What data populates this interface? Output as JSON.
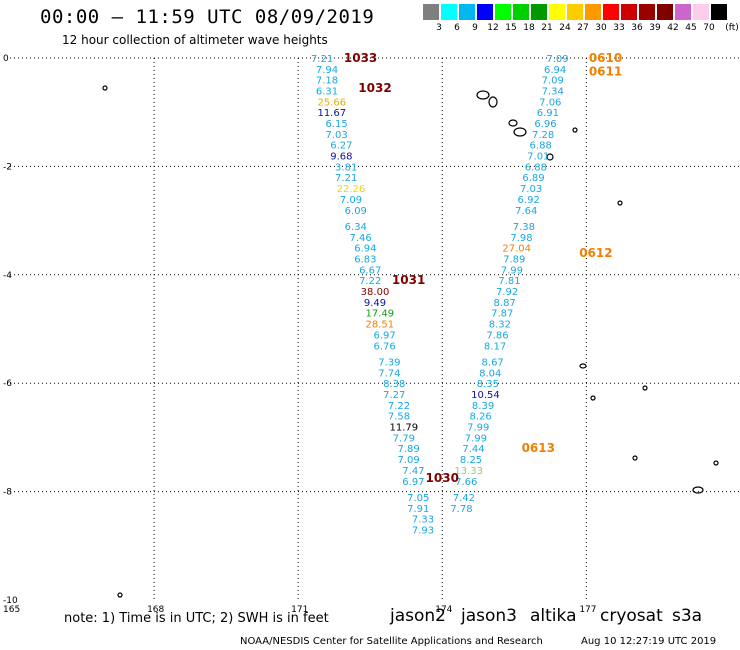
{
  "title": "00:00 – 11:59 UTC 08/09/2019",
  "subtitle": "12 hour collection of altimeter wave heights",
  "legend": {
    "unit": "(ft)",
    "bins": [
      {
        "label": "3",
        "color": "#7f7f7f"
      },
      {
        "label": "6",
        "color": "#00ffff"
      },
      {
        "label": "9",
        "color": "#00b7ef"
      },
      {
        "label": "12",
        "color": "#0000ff"
      },
      {
        "label": "15",
        "color": "#00ff00"
      },
      {
        "label": "18",
        "color": "#00d000"
      },
      {
        "label": "21",
        "color": "#009900"
      },
      {
        "label": "24",
        "color": "#ffff00"
      },
      {
        "label": "27",
        "color": "#ffcc00"
      },
      {
        "label": "30",
        "color": "#ff9900"
      },
      {
        "label": "33",
        "color": "#ff0000"
      },
      {
        "label": "36",
        "color": "#cc0000"
      },
      {
        "label": "39",
        "color": "#990000"
      },
      {
        "label": "42",
        "color": "#800000"
      },
      {
        "label": "45",
        "color": "#cc66cc"
      },
      {
        "label": "70",
        "color": "#ffccee"
      },
      {
        "label": "",
        "color": "#000000"
      }
    ]
  },
  "axes": {
    "lat_labels": [
      "0",
      "-2",
      "-4",
      "-6",
      "-8",
      "-10"
    ],
    "lon_labels": [
      "165",
      "168",
      "171",
      "174",
      "177"
    ]
  },
  "colors": {
    "light_blue": "#1aa7e0",
    "dark_blue": "#1010a0",
    "gold": "#e0b000",
    "orange": "#f08000",
    "dark_red": "#800000",
    "yellow": "#f0d800",
    "green": "#10a010",
    "light_green": "#90d070",
    "black": "#000000"
  },
  "tracks": [
    {
      "name": "west",
      "points": [
        {
          "lon": 171.5,
          "lat": 0.0,
          "value": "7.21",
          "c": "light_blue"
        },
        {
          "lon": 171.6,
          "lat": -0.2,
          "value": "7.94",
          "c": "light_blue"
        },
        {
          "lon": 171.6,
          "lat": -0.4,
          "value": "7.18",
          "c": "light_blue"
        },
        {
          "lon": 171.6,
          "lat": -0.6,
          "value": "6.31",
          "c": "light_blue"
        },
        {
          "lon": 171.7,
          "lat": -0.8,
          "value": "25.66",
          "c": "gold"
        },
        {
          "lon": 171.7,
          "lat": -1.0,
          "value": "11.67",
          "c": "dark_blue"
        },
        {
          "lon": 171.8,
          "lat": -1.2,
          "value": "6.15",
          "c": "light_blue"
        },
        {
          "lon": 171.8,
          "lat": -1.4,
          "value": "7.03",
          "c": "light_blue"
        },
        {
          "lon": 171.9,
          "lat": -1.6,
          "value": "6.27",
          "c": "light_blue"
        },
        {
          "lon": 171.9,
          "lat": -1.8,
          "value": "9.68",
          "c": "dark_blue"
        },
        {
          "lon": 172.0,
          "lat": -2.0,
          "value": "3.81",
          "c": "light_blue"
        },
        {
          "lon": 172.0,
          "lat": -2.2,
          "value": "7.21",
          "c": "light_blue"
        },
        {
          "lon": 172.1,
          "lat": -2.4,
          "value": "22.26",
          "c": "yellow"
        },
        {
          "lon": 172.1,
          "lat": -2.6,
          "value": "7.09",
          "c": "light_blue"
        },
        {
          "lon": 172.2,
          "lat": -2.8,
          "value": "6.09",
          "c": "light_blue"
        },
        {
          "lon": 172.2,
          "lat": -3.1,
          "value": "6.34",
          "c": "light_blue"
        },
        {
          "lon": 172.3,
          "lat": -3.3,
          "value": "7.46",
          "c": "light_blue"
        },
        {
          "lon": 172.4,
          "lat": -3.5,
          "value": "6.94",
          "c": "light_blue"
        },
        {
          "lon": 172.4,
          "lat": -3.7,
          "value": "6.83",
          "c": "light_blue"
        },
        {
          "lon": 172.5,
          "lat": -3.9,
          "value": "6.67",
          "c": "light_blue"
        },
        {
          "lon": 172.5,
          "lat": -4.1,
          "value": "7.22",
          "c": "light_blue"
        },
        {
          "lon": 172.6,
          "lat": -4.3,
          "value": "38.00",
          "c": "dark_red"
        },
        {
          "lon": 172.6,
          "lat": -4.5,
          "value": "9.49",
          "c": "dark_blue"
        },
        {
          "lon": 172.7,
          "lat": -4.7,
          "value": "17.49",
          "c": "green"
        },
        {
          "lon": 172.7,
          "lat": -4.9,
          "value": "28.51",
          "c": "orange"
        },
        {
          "lon": 172.8,
          "lat": -5.1,
          "value": "6.97",
          "c": "light_blue"
        },
        {
          "lon": 172.8,
          "lat": -5.3,
          "value": "6.76",
          "c": "light_blue"
        },
        {
          "lon": 172.9,
          "lat": -5.6,
          "value": "7.39",
          "c": "light_blue"
        },
        {
          "lon": 172.9,
          "lat": -5.8,
          "value": "7.74",
          "c": "light_blue"
        },
        {
          "lon": 173.0,
          "lat": -6.0,
          "value": "8.38",
          "c": "light_blue"
        },
        {
          "lon": 173.0,
          "lat": -6.2,
          "value": "7.27",
          "c": "light_blue"
        },
        {
          "lon": 173.1,
          "lat": -6.4,
          "value": "7.22",
          "c": "light_blue"
        },
        {
          "lon": 173.1,
          "lat": -6.6,
          "value": "7.58",
          "c": "light_blue"
        },
        {
          "lon": 173.2,
          "lat": -6.8,
          "value": "11.79",
          "c": "black"
        },
        {
          "lon": 173.2,
          "lat": -7.0,
          "value": "7.79",
          "c": "light_blue"
        },
        {
          "lon": 173.3,
          "lat": -7.2,
          "value": "7.89",
          "c": "light_blue"
        },
        {
          "lon": 173.3,
          "lat": -7.4,
          "value": "7.09",
          "c": "light_blue"
        },
        {
          "lon": 173.4,
          "lat": -7.6,
          "value": "7.47",
          "c": "light_blue"
        },
        {
          "lon": 173.4,
          "lat": -7.8,
          "value": "6.97",
          "c": "light_blue"
        },
        {
          "lon": 173.5,
          "lat": -8.1,
          "value": "7.05",
          "c": "light_blue"
        },
        {
          "lon": 173.5,
          "lat": -8.3,
          "value": "7.91",
          "c": "light_blue"
        },
        {
          "lon": 173.6,
          "lat": -8.5,
          "value": "7.33",
          "c": "light_blue"
        },
        {
          "lon": 173.6,
          "lat": -8.7,
          "value": "7.93",
          "c": "light_blue"
        }
      ]
    },
    {
      "name": "east",
      "points": [
        {
          "lon": 176.4,
          "lat": 0.0,
          "value": "7.09",
          "c": "light_blue"
        },
        {
          "lon": 176.35,
          "lat": -0.2,
          "value": "6.94",
          "c": "light_blue"
        },
        {
          "lon": 176.3,
          "lat": -0.4,
          "value": "7.09",
          "c": "light_blue"
        },
        {
          "lon": 176.3,
          "lat": -0.6,
          "value": "7.34",
          "c": "light_blue"
        },
        {
          "lon": 176.25,
          "lat": -0.8,
          "value": "7.06",
          "c": "light_blue"
        },
        {
          "lon": 176.2,
          "lat": -1.0,
          "value": "6.91",
          "c": "light_blue"
        },
        {
          "lon": 176.15,
          "lat": -1.2,
          "value": "6.96",
          "c": "light_blue"
        },
        {
          "lon": 176.1,
          "lat": -1.4,
          "value": "7.28",
          "c": "light_blue"
        },
        {
          "lon": 176.05,
          "lat": -1.6,
          "value": "6.88",
          "c": "light_blue"
        },
        {
          "lon": 176.0,
          "lat": -1.8,
          "value": "7.01",
          "c": "light_blue"
        },
        {
          "lon": 175.95,
          "lat": -2.0,
          "value": "6.88",
          "c": "light_blue"
        },
        {
          "lon": 175.9,
          "lat": -2.2,
          "value": "6.89",
          "c": "light_blue"
        },
        {
          "lon": 175.85,
          "lat": -2.4,
          "value": "7.03",
          "c": "light_blue"
        },
        {
          "lon": 175.8,
          "lat": -2.6,
          "value": "6.92",
          "c": "light_blue"
        },
        {
          "lon": 175.75,
          "lat": -2.8,
          "value": "7.64",
          "c": "light_blue"
        },
        {
          "lon": 175.7,
          "lat": -3.1,
          "value": "7.38",
          "c": "light_blue"
        },
        {
          "lon": 175.65,
          "lat": -3.3,
          "value": "7.98",
          "c": "light_blue"
        },
        {
          "lon": 175.55,
          "lat": -3.5,
          "value": "27.04",
          "c": "orange"
        },
        {
          "lon": 175.5,
          "lat": -3.7,
          "value": "7.89",
          "c": "light_blue"
        },
        {
          "lon": 175.45,
          "lat": -3.9,
          "value": "7.99",
          "c": "light_blue"
        },
        {
          "lon": 175.4,
          "lat": -4.1,
          "value": "7.81",
          "c": "light_blue"
        },
        {
          "lon": 175.35,
          "lat": -4.3,
          "value": "7.92",
          "c": "light_blue"
        },
        {
          "lon": 175.3,
          "lat": -4.5,
          "value": "8.87",
          "c": "light_blue"
        },
        {
          "lon": 175.25,
          "lat": -4.7,
          "value": "7.87",
          "c": "light_blue"
        },
        {
          "lon": 175.2,
          "lat": -4.9,
          "value": "8.32",
          "c": "light_blue"
        },
        {
          "lon": 175.15,
          "lat": -5.1,
          "value": "7.86",
          "c": "light_blue"
        },
        {
          "lon": 175.1,
          "lat": -5.3,
          "value": "8.17",
          "c": "light_blue"
        },
        {
          "lon": 175.05,
          "lat": -5.6,
          "value": "8.67",
          "c": "light_blue"
        },
        {
          "lon": 175.0,
          "lat": -5.8,
          "value": "8.04",
          "c": "light_blue"
        },
        {
          "lon": 174.95,
          "lat": -6.0,
          "value": "8.35",
          "c": "light_blue"
        },
        {
          "lon": 174.9,
          "lat": -6.2,
          "value": "10.54",
          "c": "dark_blue"
        },
        {
          "lon": 174.85,
          "lat": -6.4,
          "value": "8.39",
          "c": "light_blue"
        },
        {
          "lon": 174.8,
          "lat": -6.6,
          "value": "8.26",
          "c": "light_blue"
        },
        {
          "lon": 174.75,
          "lat": -6.8,
          "value": "7.99",
          "c": "light_blue"
        },
        {
          "lon": 174.7,
          "lat": -7.0,
          "value": "7.99",
          "c": "light_blue"
        },
        {
          "lon": 174.65,
          "lat": -7.2,
          "value": "7.44",
          "c": "light_blue"
        },
        {
          "lon": 174.6,
          "lat": -7.4,
          "value": "8.25",
          "c": "light_blue"
        },
        {
          "lon": 174.55,
          "lat": -7.6,
          "value": "13.33",
          "c": "light_green"
        },
        {
          "lon": 174.5,
          "lat": -7.8,
          "value": "7.66",
          "c": "light_blue"
        },
        {
          "lon": 174.45,
          "lat": -8.1,
          "value": "7.42",
          "c": "light_blue"
        },
        {
          "lon": 174.4,
          "lat": -8.3,
          "value": "7.78",
          "c": "light_blue"
        }
      ]
    }
  ],
  "time_labels": [
    {
      "text": "1033",
      "lon": 172.3,
      "lat": 0.0,
      "c": "dark_red"
    },
    {
      "text": "1032",
      "lon": 172.6,
      "lat": -0.55,
      "c": "dark_red"
    },
    {
      "text": "1031",
      "lon": 173.3,
      "lat": -4.1,
      "c": "dark_red"
    },
    {
      "text": "1030",
      "lon": 174.0,
      "lat": -7.75,
      "c": "dark_red"
    },
    {
      "text": "0610",
      "lon": 177.4,
      "lat": 0.0,
      "c": "orange"
    },
    {
      "text": "0611",
      "lon": 177.4,
      "lat": -0.25,
      "c": "orange"
    },
    {
      "text": "0612",
      "lon": 177.2,
      "lat": -3.6,
      "c": "orange"
    },
    {
      "text": "0613",
      "lon": 176.0,
      "lat": -7.2,
      "c": "orange"
    }
  ],
  "note": "note: 1) Time is in UTC; 2) SWH is in feet",
  "satellites": [
    {
      "name": "jason2",
      "color": "#1010c0"
    },
    {
      "name": "jason3",
      "color": "#10a010"
    },
    {
      "name": "altika",
      "color": "#f08000"
    },
    {
      "name": "cryosat",
      "color": "#c00000"
    },
    {
      "name": "s3a",
      "color": "#800000"
    }
  ],
  "credit": "NOAA/NESDIS Center for Satellite Applications and Research",
  "generated": "Aug 10 12:27:19 UTC 2019"
}
